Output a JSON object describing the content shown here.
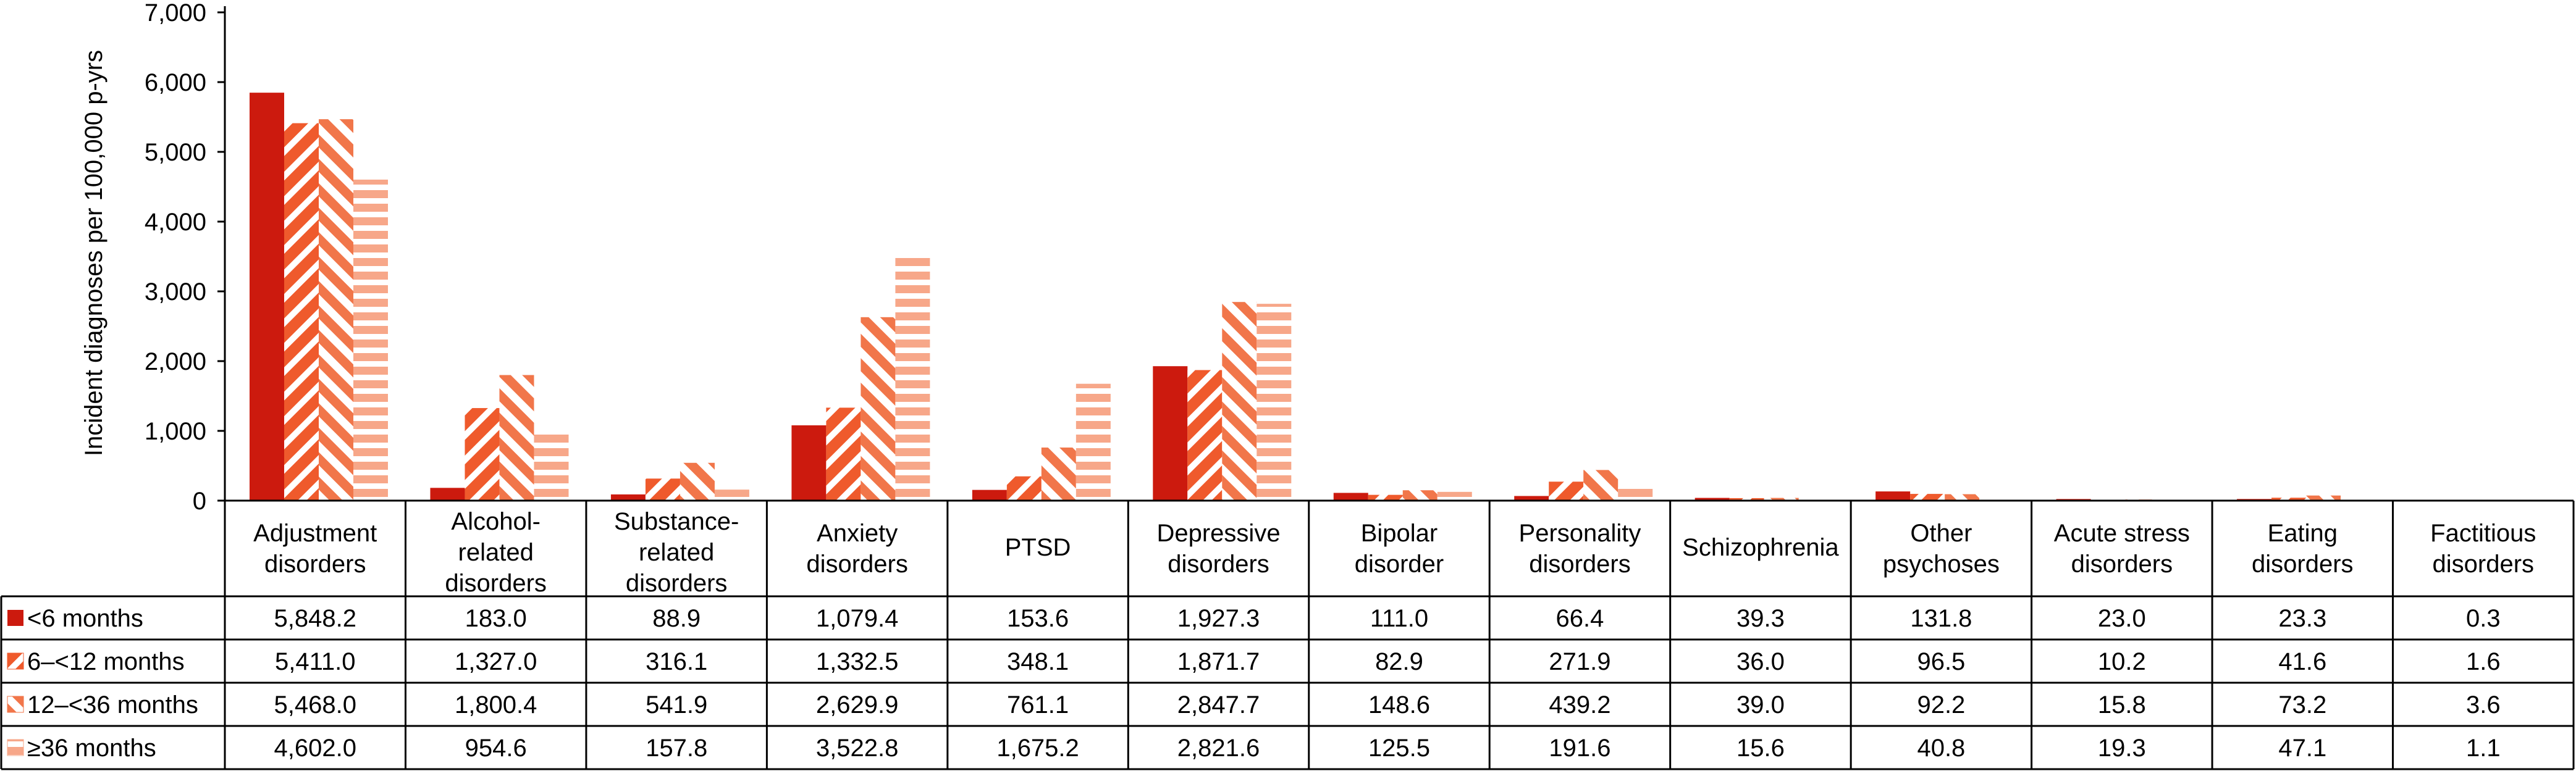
{
  "chart_data": {
    "type": "bar",
    "ylabel": "Incident diagnoses per 100,000 p-yrs",
    "ylim": [
      0,
      7000
    ],
    "yticks": [
      "0",
      "1,000",
      "2,000",
      "3,000",
      "4,000",
      "5,000",
      "6,000",
      "7,000"
    ],
    "categories": [
      [
        "Adjustment",
        "disorders"
      ],
      [
        "Alcohol-",
        "related",
        "disorders"
      ],
      [
        "Substance-",
        "related",
        "disorders"
      ],
      [
        "Anxiety",
        "disorders"
      ],
      [
        "PTSD"
      ],
      [
        "Depressive",
        "disorders"
      ],
      [
        "Bipolar",
        "disorder"
      ],
      [
        "Personality",
        "disorders"
      ],
      [
        "Schizophrenia"
      ],
      [
        "Other",
        "psychoses"
      ],
      [
        "Acute stress",
        "disorders"
      ],
      [
        "Eating",
        "disorders"
      ],
      [
        "Factitious",
        "disorders"
      ]
    ],
    "series": [
      {
        "name": "<6 months",
        "color": "#cc1a0e",
        "pattern": "solid",
        "values": [
          5848.2,
          183.0,
          88.9,
          1079.4,
          153.6,
          1927.3,
          111.0,
          66.4,
          39.3,
          131.8,
          23.0,
          23.3,
          0.3
        ],
        "labels": [
          "5,848.2",
          "183.0",
          "88.9",
          "1,079.4",
          "153.6",
          "1,927.3",
          "111.0",
          "66.4",
          "39.3",
          "131.8",
          "23.0",
          "23.3",
          "0.3"
        ]
      },
      {
        "name": "6–<12 months",
        "color": "#ef5a2c",
        "pattern": "diag-up",
        "values": [
          5411.0,
          1327.0,
          316.1,
          1332.5,
          348.1,
          1871.7,
          82.9,
          271.9,
          36.0,
          96.5,
          10.2,
          41.6,
          1.6
        ],
        "labels": [
          "5,411.0",
          "1,327.0",
          "316.1",
          "1,332.5",
          "348.1",
          "1,871.7",
          "82.9",
          "271.9",
          "36.0",
          "96.5",
          "10.2",
          "41.6",
          "1.6"
        ]
      },
      {
        "name": "12–<36 months",
        "color": "#f1764a",
        "pattern": "diag-down",
        "values": [
          5468.0,
          1800.4,
          541.9,
          2629.9,
          761.1,
          2847.7,
          148.6,
          439.2,
          39.0,
          92.2,
          15.8,
          73.2,
          3.6
        ],
        "labels": [
          "5,468.0",
          "1,800.4",
          "541.9",
          "2,629.9",
          "761.1",
          "2,847.7",
          "148.6",
          "439.2",
          "39.0",
          "92.2",
          "15.8",
          "73.2",
          "3.6"
        ]
      },
      {
        "name": "≥36 months",
        "color": "#f7a789",
        "pattern": "horizontal",
        "values": [
          4602.0,
          954.6,
          157.8,
          3522.8,
          1675.2,
          2821.6,
          125.5,
          191.6,
          15.6,
          40.8,
          19.3,
          47.1,
          1.1
        ],
        "labels": [
          "4,602.0",
          "954.6",
          "157.8",
          "3,522.8",
          "1,675.2",
          "2,821.6",
          "125.5",
          "191.6",
          "15.6",
          "40.8",
          "19.3",
          "47.1",
          "1.1"
        ]
      }
    ]
  }
}
